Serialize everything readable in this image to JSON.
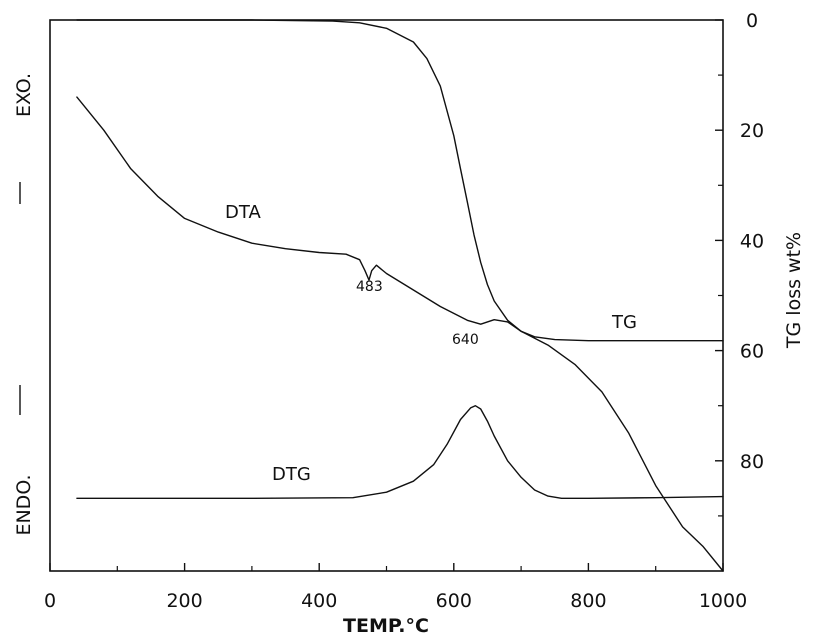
{
  "chart_data": {
    "type": "line",
    "title": "",
    "xlabel": "TEMP.°C",
    "xlim": [
      0,
      1000
    ],
    "x_ticks": [
      "0",
      "200",
      "400",
      "600",
      "800",
      "1000"
    ],
    "y_right_label": "TG loss wt%",
    "y_right_lim": [
      0,
      100
    ],
    "y_right_inverted": true,
    "y_right_ticks": [
      "0",
      "20",
      "40",
      "60",
      "80"
    ],
    "y_left_labels": {
      "top": "EXO.",
      "bottom": "ENDO."
    },
    "grid": false,
    "series": [
      {
        "name": "TG",
        "axis": "right",
        "x": [
          40,
          300,
          420,
          460,
          500,
          540,
          560,
          580,
          600,
          610,
          620,
          630,
          640,
          650,
          660,
          680,
          700,
          720,
          750,
          800,
          900,
          1000
        ],
        "y": [
          0,
          0,
          0.2,
          0.5,
          1.5,
          4,
          7,
          12,
          21,
          27,
          33,
          39,
          44,
          48,
          51,
          54.5,
          56.5,
          57.5,
          58,
          58.2,
          58.2,
          58.2
        ]
      },
      {
        "name": "DTA",
        "axis": "left-relative",
        "x": [
          40,
          80,
          120,
          160,
          200,
          250,
          300,
          350,
          400,
          440,
          460,
          468,
          474,
          478,
          485,
          500,
          540,
          580,
          620,
          640,
          660,
          680,
          700,
          740,
          780,
          820,
          860,
          900,
          940,
          970,
          1000
        ],
        "y": [
          86,
          80,
          73,
          68,
          64,
          61.5,
          59.5,
          58.5,
          57.8,
          57.5,
          56.5,
          54.5,
          52.8,
          54.5,
          55.5,
          54,
          51,
          48,
          45.5,
          44.8,
          45.6,
          45.2,
          43.5,
          41,
          37.5,
          32.5,
          25,
          15.5,
          8,
          4.5,
          0
        ]
      },
      {
        "name": "DTG",
        "axis": "left-relative",
        "x": [
          40,
          300,
          450,
          500,
          540,
          570,
          590,
          610,
          625,
          632,
          640,
          650,
          660,
          680,
          700,
          720,
          740,
          760,
          800,
          900,
          1000
        ],
        "y": [
          13.2,
          13.2,
          13.3,
          14.3,
          16.3,
          19.3,
          23,
          27.5,
          29.6,
          30,
          29.4,
          27.2,
          24.5,
          20,
          17,
          14.7,
          13.6,
          13.2,
          13.2,
          13.3,
          13.5
        ]
      }
    ],
    "annotations": [
      {
        "text": "483",
        "x": 483
      },
      {
        "text": "640",
        "x": 640
      }
    ]
  }
}
